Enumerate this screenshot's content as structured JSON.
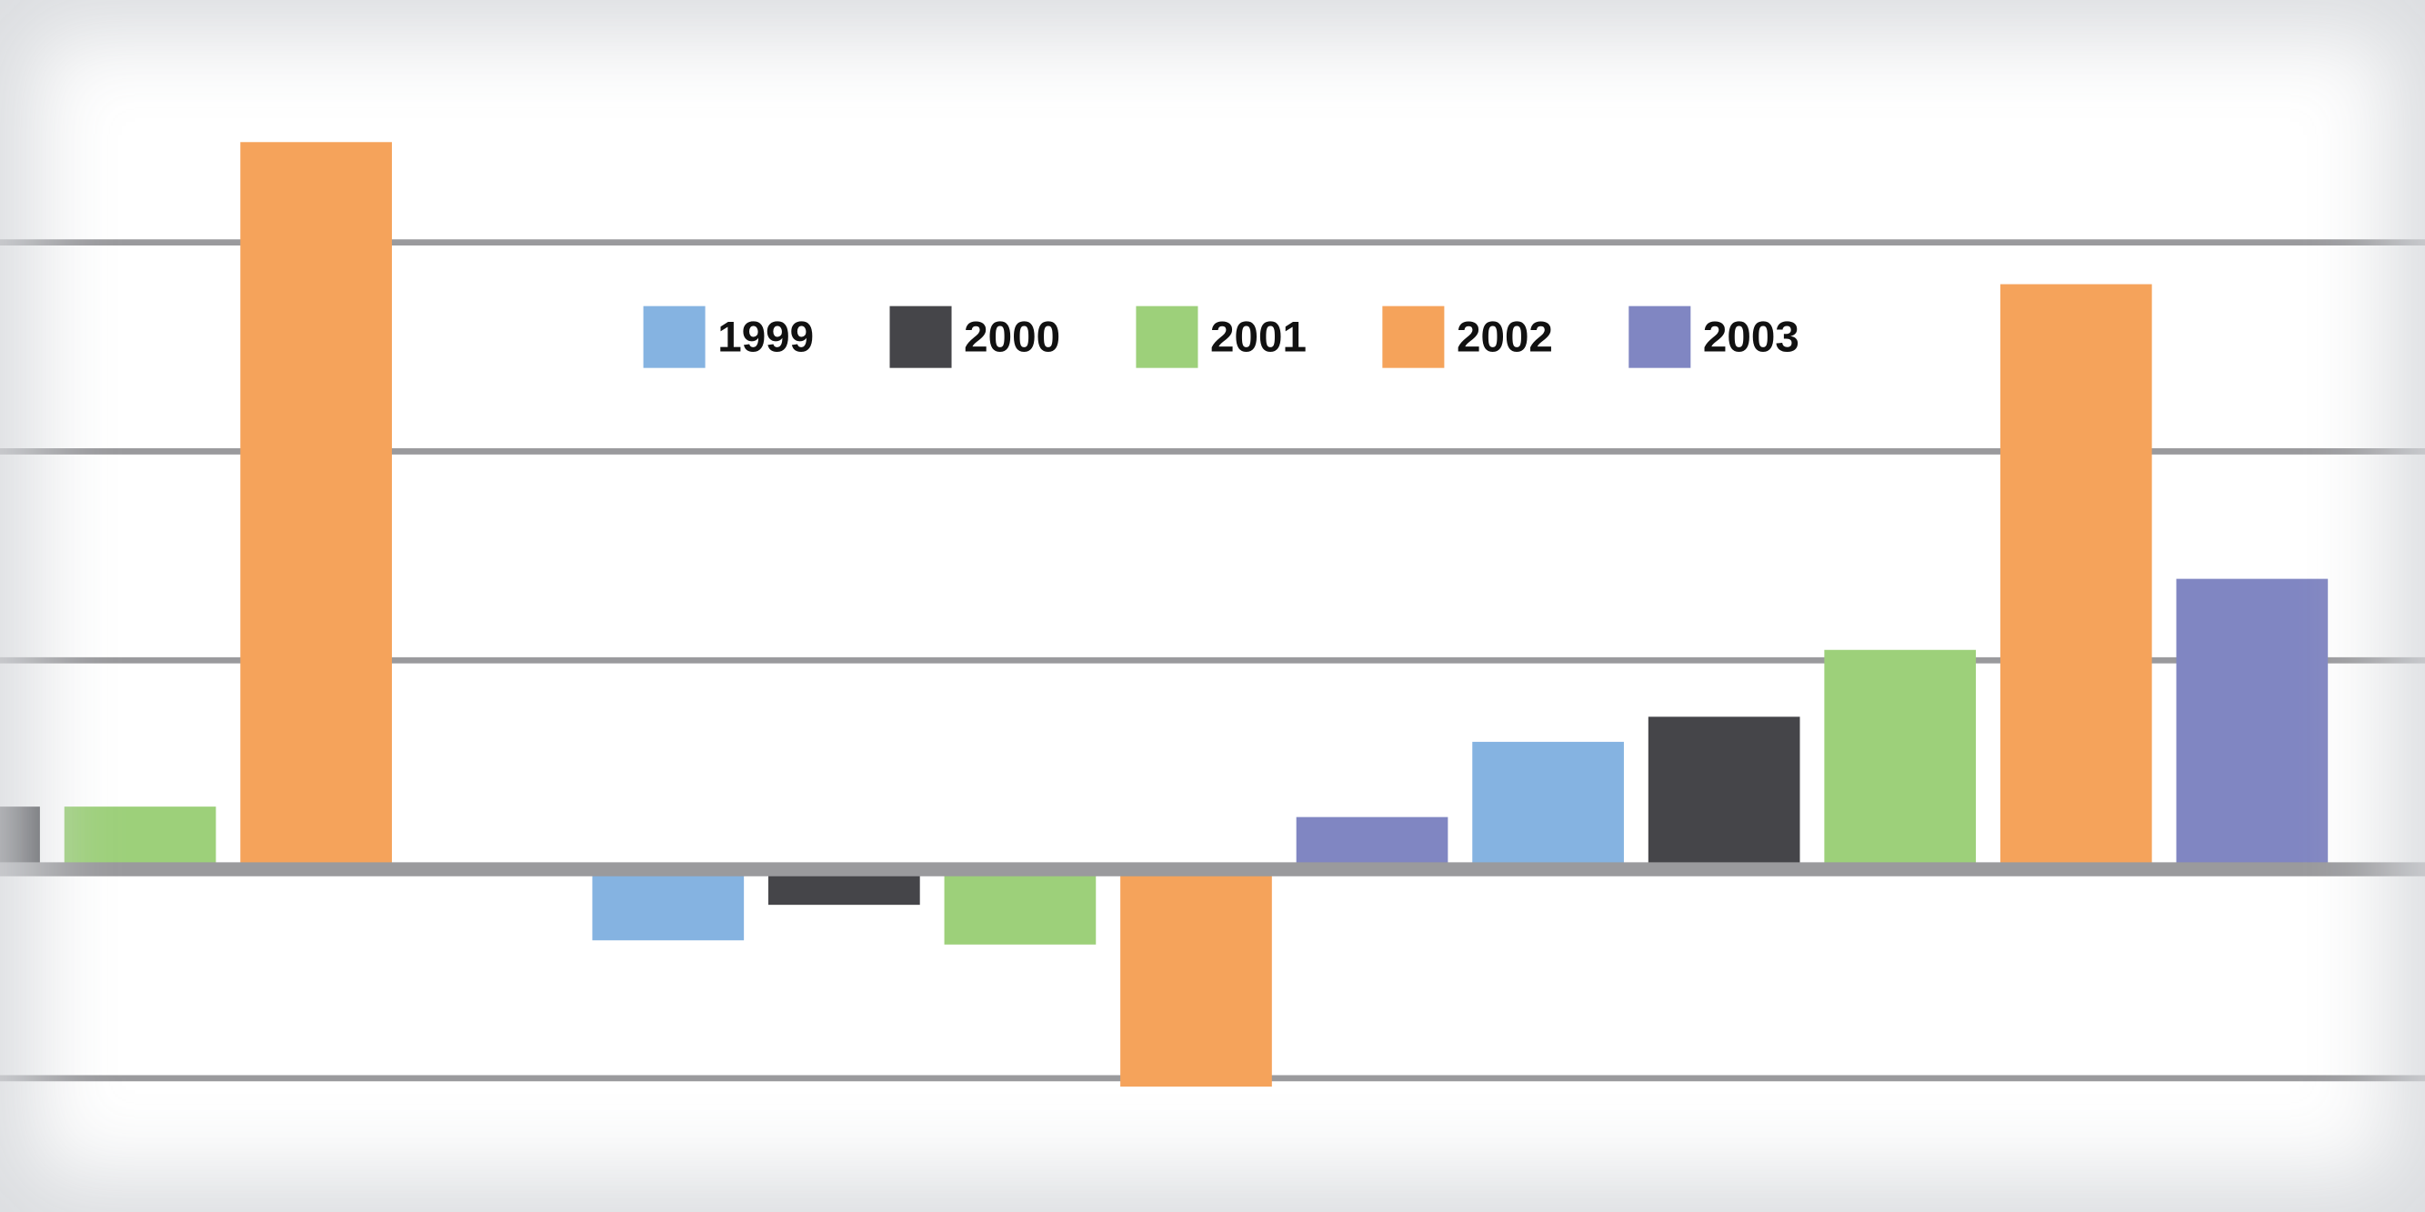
{
  "chart_data": {
    "type": "bar",
    "categories": [
      null,
      null,
      null
    ],
    "series": [
      {
        "name": "1999",
        "color": "#85b3e1",
        "values": [
          null,
          -0.34,
          0.61
        ]
      },
      {
        "name": "2000",
        "color": "#454549",
        "values": [
          0.3,
          -0.17,
          0.73
        ]
      },
      {
        "name": "2001",
        "color": "#9dd07a",
        "values": [
          0.3,
          -0.36,
          1.05
        ]
      },
      {
        "name": "2002",
        "color": "#f5a35b",
        "values": [
          3.48,
          -1.04,
          2.8
        ]
      },
      {
        "name": "2003",
        "color": "#8086c2",
        "values": [
          null,
          0.25,
          1.39
        ]
      }
    ],
    "ylim": [
      -1.64,
      4.16
    ],
    "yticks": [
      -1,
      0,
      1,
      2,
      3
    ],
    "grid": true
  }
}
